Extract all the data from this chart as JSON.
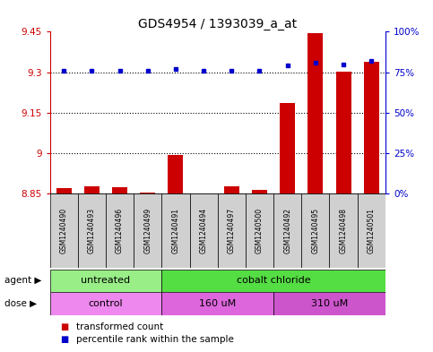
{
  "title": "GDS4954 / 1393039_a_at",
  "samples": [
    "GSM1240490",
    "GSM1240493",
    "GSM1240496",
    "GSM1240499",
    "GSM1240491",
    "GSM1240494",
    "GSM1240497",
    "GSM1240500",
    "GSM1240492",
    "GSM1240495",
    "GSM1240498",
    "GSM1240501"
  ],
  "red_values": [
    8.87,
    8.877,
    8.873,
    8.854,
    8.993,
    8.851,
    8.877,
    8.864,
    9.185,
    9.445,
    9.302,
    9.338
  ],
  "blue_values": [
    76,
    76,
    76,
    76,
    77,
    76,
    76,
    76,
    79,
    81,
    80,
    82
  ],
  "ylim_left": [
    8.85,
    9.45
  ],
  "ylim_right": [
    0,
    100
  ],
  "yticks_left": [
    8.85,
    9.0,
    9.15,
    9.3,
    9.45
  ],
  "ytick_labels_left": [
    "8.85",
    "9",
    "9.15",
    "9.3",
    "9.45"
  ],
  "yticks_right": [
    0,
    25,
    50,
    75,
    100
  ],
  "ytick_labels_right": [
    "0%",
    "25%",
    "50%",
    "75%",
    "100%"
  ],
  "hlines": [
    9.0,
    9.15,
    9.3
  ],
  "agent_groups": [
    {
      "label": "untreated",
      "start": 0,
      "end": 4,
      "color": "#99ee88"
    },
    {
      "label": "cobalt chloride",
      "start": 4,
      "end": 12,
      "color": "#55dd44"
    }
  ],
  "dose_groups": [
    {
      "label": "control",
      "start": 0,
      "end": 4,
      "color": "#ee88ee"
    },
    {
      "label": "160 uM",
      "start": 4,
      "end": 8,
      "color": "#dd66dd"
    },
    {
      "label": "310 uM",
      "start": 8,
      "end": 12,
      "color": "#cc55cc"
    }
  ],
  "bar_color": "#cc0000",
  "dot_color": "#0000cc",
  "bar_width": 0.55,
  "background_color": "#ffffff",
  "plot_bg": "#ffffff",
  "tick_color_left": "#cc0000",
  "tick_color_right": "#0000cc",
  "legend_red": "transformed count",
  "legend_blue": "percentile rank within the sample",
  "label_row1": "agent",
  "label_row2": "dose",
  "title_fontsize": 10
}
